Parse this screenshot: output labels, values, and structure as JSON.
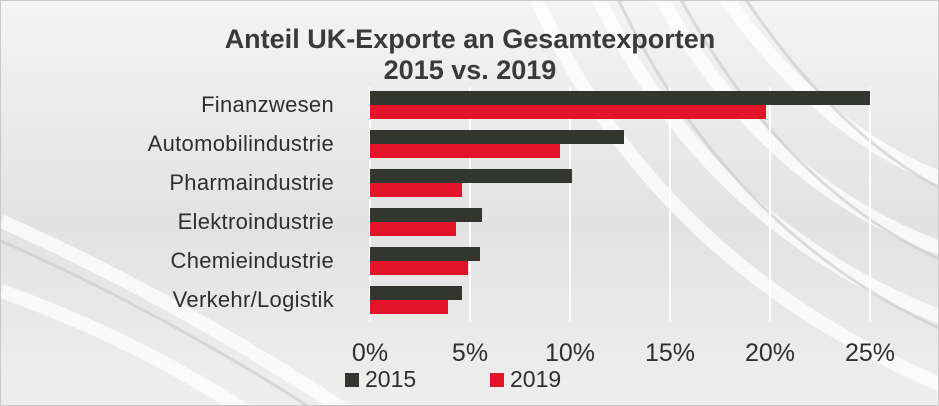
{
  "colors": {
    "s2015": "#33352f",
    "s2019": "#e3142a",
    "grid": "#ffffff"
  },
  "chart_data": {
    "type": "bar",
    "orientation": "horizontal",
    "title": "Anteil UK-Exporte an Gesamtexporten",
    "subtitle": "2015 vs. 2019",
    "categories": [
      "Finanzwesen",
      "Automobilindustrie",
      "Pharmaindustrie",
      "Elektroindustrie",
      "Chemieindustrie",
      "Verkehr/Logistik"
    ],
    "series": [
      {
        "name": "2015",
        "values": [
          25,
          12.7,
          10.1,
          5.6,
          5.5,
          4.6
        ]
      },
      {
        "name": "2019",
        "values": [
          19.8,
          9.5,
          4.6,
          4.3,
          4.9,
          3.9
        ]
      }
    ],
    "xlim": [
      0,
      25
    ],
    "ticks": [
      0,
      5,
      10,
      15,
      20,
      25
    ],
    "tick_labels": [
      "0%",
      "5%",
      "10%",
      "15%",
      "20%",
      "25%"
    ],
    "grid": true,
    "legend_position": "bottom-left"
  }
}
